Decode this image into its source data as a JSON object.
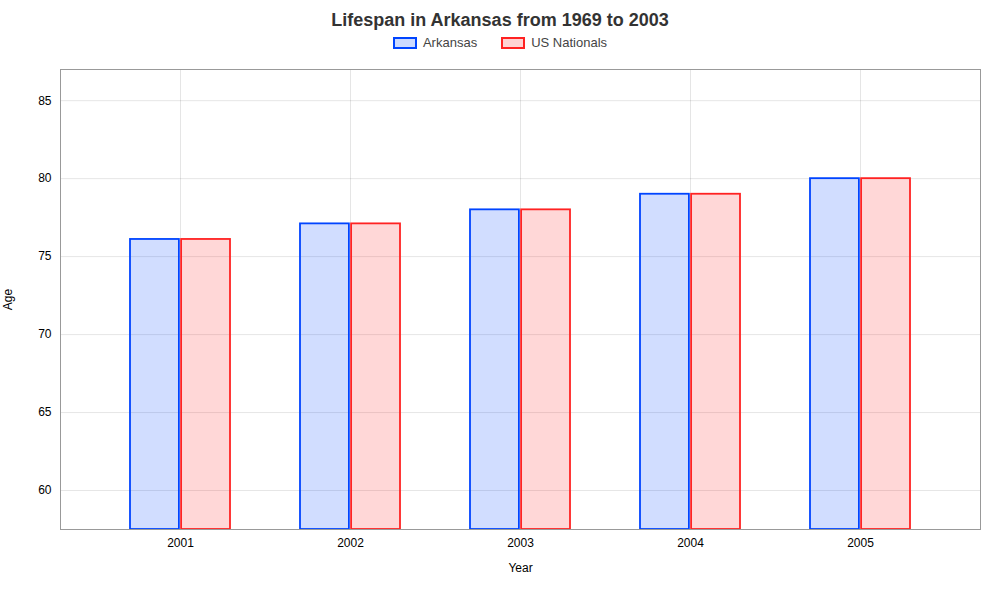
{
  "chart_data": {
    "type": "bar",
    "title": "Lifespan in Arkansas from 1969 to 2003",
    "x_label": "Year",
    "y_label": "Age",
    "categories": [
      "2001",
      "2002",
      "2003",
      "2004",
      "2005"
    ],
    "series": [
      {
        "name": "Arkansas",
        "color": "#0044ff",
        "values": [
          76.1,
          77.1,
          78.0,
          79.0,
          80.0
        ]
      },
      {
        "name": "US Nationals",
        "color": "#ff2222",
        "values": [
          76.1,
          77.1,
          78.0,
          79.0,
          80.0
        ]
      }
    ],
    "ylim": [
      57.5,
      87
    ],
    "yticks": [
      60,
      65,
      70,
      75,
      80,
      85
    ],
    "grid": true,
    "legend": "upper center"
  }
}
